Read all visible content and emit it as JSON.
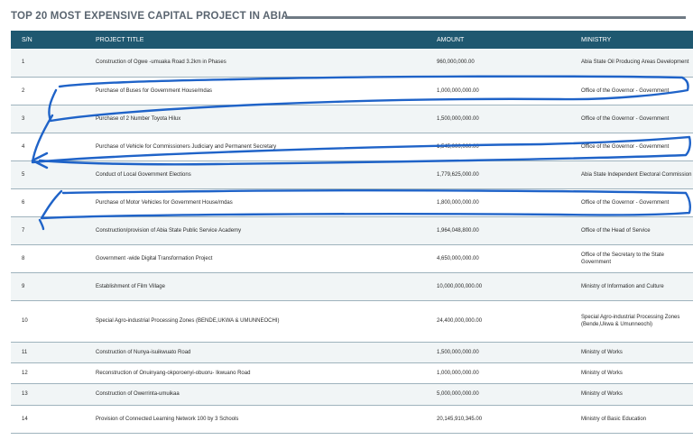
{
  "title": "TOP 20 MOST EXPENSIVE CAPITAL PROJECT IN ABIA",
  "headers": {
    "sn": "S/N",
    "project": "PROJECT TITLE",
    "amount": "AMOUNT",
    "ministry": "MINISTRY"
  },
  "rows": [
    {
      "sn": "1",
      "project": "Construction of Ogwe -umuaka Road 3.2km in Phases",
      "amount": "960,000,000.00",
      "ministry": "Abia State Oil Producing Areas Development"
    },
    {
      "sn": "2",
      "project": "Purchase of Buses for Government House/mdas",
      "amount": "1,000,000,000.00",
      "ministry": "Office of the Governor - Government"
    },
    {
      "sn": "3",
      "project": "Purchase of 2 Number Toyota Hilux",
      "amount": "1,500,000,000.00",
      "ministry": "Office of the Governor - Government"
    },
    {
      "sn": "4",
      "project": "Purchase of Vehicle for Commissioners Judiciary and Permanent Secretary",
      "amount": "1,545,000,000.00",
      "ministry": "Office of the Governor - Government"
    },
    {
      "sn": "5",
      "project": "Conduct of Local Government Elections",
      "amount": "1,779,625,000.00",
      "ministry": "Abia State Independent Electoral Commission"
    },
    {
      "sn": "6",
      "project": "Purchase of Motor Vehicles for Government House/mdas",
      "amount": "1,800,000,000.00",
      "ministry": "Office of the Governor - Government"
    },
    {
      "sn": "7",
      "project": "Construction/provision of Abia State Public Service Academy",
      "amount": "1,964,048,800.00",
      "ministry": "Office of the Head of Service"
    },
    {
      "sn": "8",
      "project": "Government -wide Digital Transformation Project",
      "amount": "4,650,000,000.00",
      "ministry": "Office of the Secretary to the State Government"
    },
    {
      "sn": "9",
      "project": "Establishment of Film Village",
      "amount": "10,000,000,000.00",
      "ministry": "Ministry of Information and Culture"
    },
    {
      "sn": "10",
      "project": "Special Agro-industrial Processing Zones (BENDE,UKWA & UMUNNEOCHI)",
      "amount": "24,400,000,000.00",
      "ministry": "Special Agro-industrial Processing Zones (Bende,Ukwa & Umunneochi)"
    },
    {
      "sn": "11",
      "project": "Construction of Nunya-isuikwuato Road",
      "amount": "1,500,000,000.00",
      "ministry": "Ministry of Works"
    },
    {
      "sn": "12",
      "project": "Reconstruction of Onuinyang-okporoenyi-obuoru- Ikwuano Road",
      "amount": "1,000,000,000.00",
      "ministry": "Ministry of Works"
    },
    {
      "sn": "13",
      "project": "Construction of Owerrinta-umuikaa",
      "amount": "5,000,000,000.00",
      "ministry": "Ministry of Works"
    },
    {
      "sn": "14",
      "project": "Provision of Connected Learning Network 100 by 3 Schools",
      "amount": "20,145,910,345.00",
      "ministry": "Ministry of Basic Education"
    }
  ],
  "colors": {
    "header_bg": "#1f5870",
    "annotation_ink": "#1f63c8"
  }
}
